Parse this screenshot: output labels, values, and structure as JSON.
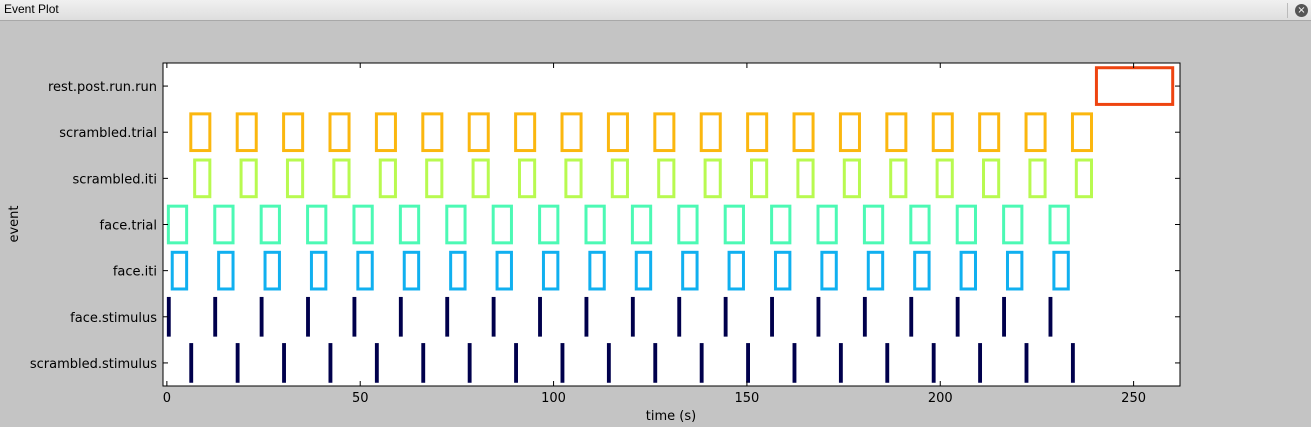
{
  "window": {
    "title": "Event Plot"
  },
  "chart_data": {
    "type": "event",
    "title": "",
    "xlabel": "time (s)",
    "ylabel": "event",
    "xlim": [
      -1,
      262
    ],
    "xticks": [
      0,
      50,
      100,
      150,
      200,
      250
    ],
    "grid": false,
    "categories": [
      "rest.post.run.run",
      "scrambled.trial",
      "scrambled.iti",
      "face.trial",
      "face.iti",
      "face.stimulus",
      "scrambled.stimulus"
    ],
    "series": [
      {
        "name": "rest.post.run.run",
        "color": "#ee4410",
        "events": [
          [
            240,
            260.5
          ]
        ]
      },
      {
        "name": "scrambled.trial",
        "color": "#fbb70f",
        "events": [
          [
            5.8,
            11.5
          ],
          [
            17.8,
            23.5
          ],
          [
            29.8,
            35.5
          ],
          [
            41.8,
            47.5
          ],
          [
            53.8,
            59.5
          ],
          [
            65.8,
            71.5
          ],
          [
            77.8,
            83.5
          ],
          [
            89.8,
            95.5
          ],
          [
            101.8,
            107.5
          ],
          [
            113.8,
            119.5
          ],
          [
            125.8,
            131.5
          ],
          [
            137.8,
            143.5
          ],
          [
            149.8,
            155.5
          ],
          [
            161.8,
            167.5
          ],
          [
            173.8,
            179.5
          ],
          [
            185.8,
            191.5
          ],
          [
            197.8,
            203.5
          ],
          [
            209.8,
            215.5
          ],
          [
            221.8,
            227.5
          ],
          [
            233.8,
            239.5
          ]
        ]
      },
      {
        "name": "scrambled.iti",
        "color": "#b8fa50",
        "events": [
          [
            6.8,
            11.5
          ],
          [
            18.8,
            23.5
          ],
          [
            30.8,
            35.5
          ],
          [
            42.8,
            47.5
          ],
          [
            54.8,
            59.5
          ],
          [
            66.8,
            71.5
          ],
          [
            78.8,
            83.5
          ],
          [
            90.8,
            95.5
          ],
          [
            102.8,
            107.5
          ],
          [
            114.8,
            119.5
          ],
          [
            126.8,
            131.5
          ],
          [
            138.8,
            143.5
          ],
          [
            150.8,
            155.5
          ],
          [
            162.8,
            167.5
          ],
          [
            174.8,
            179.5
          ],
          [
            186.8,
            191.5
          ],
          [
            198.8,
            203.5
          ],
          [
            210.8,
            215.5
          ],
          [
            222.8,
            227.5
          ],
          [
            234.8,
            239.5
          ]
        ]
      },
      {
        "name": "face.trial",
        "color": "#4cf9b4",
        "events": [
          [
            0,
            5.5
          ],
          [
            12,
            17.5
          ],
          [
            24,
            29.5
          ],
          [
            36,
            41.5
          ],
          [
            48,
            53.5
          ],
          [
            60,
            65.5
          ],
          [
            72,
            77.5
          ],
          [
            84,
            89.5
          ],
          [
            96,
            101.5
          ],
          [
            108,
            113.5
          ],
          [
            120,
            125.5
          ],
          [
            132,
            137.5
          ],
          [
            144,
            149.5
          ],
          [
            156,
            161.5
          ],
          [
            168,
            173.5
          ],
          [
            180,
            185.5
          ],
          [
            192,
            197.5
          ],
          [
            204,
            209.5
          ],
          [
            216,
            221.5
          ],
          [
            228,
            233.5
          ]
        ]
      },
      {
        "name": "face.iti",
        "color": "#10b0f0",
        "events": [
          [
            1,
            5.5
          ],
          [
            13,
            17.5
          ],
          [
            25,
            29.5
          ],
          [
            37,
            41.5
          ],
          [
            49,
            53.5
          ],
          [
            61,
            65.5
          ],
          [
            73,
            77.5
          ],
          [
            85,
            89.5
          ],
          [
            97,
            101.5
          ],
          [
            109,
            113.5
          ],
          [
            121,
            125.5
          ],
          [
            133,
            137.5
          ],
          [
            145,
            149.5
          ],
          [
            157,
            161.5
          ],
          [
            169,
            173.5
          ],
          [
            181,
            185.5
          ],
          [
            193,
            197.5
          ],
          [
            205,
            209.5
          ],
          [
            217,
            221.5
          ],
          [
            229,
            233.5
          ]
        ]
      },
      {
        "name": "face.stimulus",
        "color": "#00004c",
        "events": [
          [
            0,
            1
          ],
          [
            12,
            13
          ],
          [
            24,
            25
          ],
          [
            36,
            37
          ],
          [
            48,
            49
          ],
          [
            60,
            61
          ],
          [
            72,
            73
          ],
          [
            84,
            85
          ],
          [
            96,
            97
          ],
          [
            108,
            109
          ],
          [
            120,
            121
          ],
          [
            132,
            133
          ],
          [
            144,
            145
          ],
          [
            156,
            157
          ],
          [
            168,
            169
          ],
          [
            180,
            181
          ],
          [
            192,
            193
          ],
          [
            204,
            205
          ],
          [
            216,
            217
          ],
          [
            228,
            229
          ]
        ]
      },
      {
        "name": "scrambled.stimulus",
        "color": "#00004c",
        "events": [
          [
            5.8,
            6.8
          ],
          [
            17.8,
            18.8
          ],
          [
            29.8,
            30.8
          ],
          [
            41.8,
            42.8
          ],
          [
            53.8,
            54.8
          ],
          [
            65.8,
            66.8
          ],
          [
            77.8,
            78.8
          ],
          [
            89.8,
            90.8
          ],
          [
            101.8,
            102.8
          ],
          [
            113.8,
            114.8
          ],
          [
            125.8,
            126.8
          ],
          [
            137.8,
            138.8
          ],
          [
            149.8,
            150.8
          ],
          [
            161.8,
            162.8
          ],
          [
            173.8,
            174.8
          ],
          [
            185.8,
            186.8
          ],
          [
            197.8,
            198.8
          ],
          [
            209.8,
            210.8
          ],
          [
            221.8,
            222.8
          ],
          [
            233.8,
            234.8
          ]
        ]
      }
    ]
  }
}
